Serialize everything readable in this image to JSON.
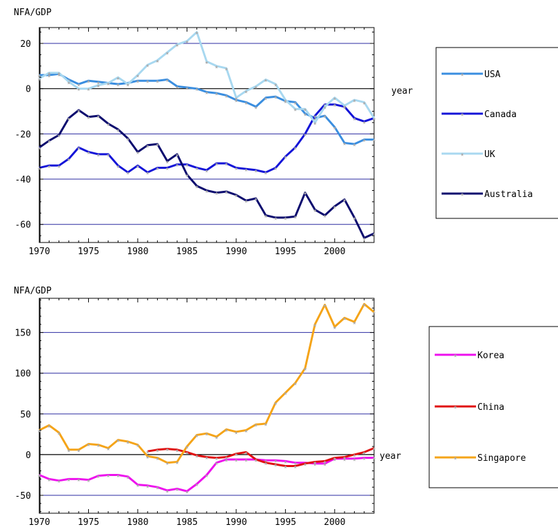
{
  "chart_data": [
    {
      "type": "line",
      "ylabel": "NFA/GDP",
      "xlabel": "year",
      "xlim": [
        1970,
        2004
      ],
      "ylim": [
        -68,
        27
      ],
      "xticks": [
        1970,
        1975,
        1980,
        1985,
        1990,
        1995,
        2000
      ],
      "yticks": [
        -60,
        -40,
        -20,
        0,
        20
      ],
      "ytick_labels": [
        "-60",
        "-40",
        "-20",
        "0",
        "20"
      ],
      "gridlines_y": [
        -60,
        -40,
        -20,
        20
      ],
      "grid": true,
      "legend_position": "right",
      "x": [
        1970,
        1971,
        1972,
        1973,
        1974,
        1975,
        1976,
        1977,
        1978,
        1979,
        1980,
        1981,
        1982,
        1983,
        1984,
        1985,
        1986,
        1987,
        1988,
        1989,
        1990,
        1991,
        1992,
        1993,
        1994,
        1995,
        1996,
        1997,
        1998,
        1999,
        2000,
        2001,
        2002,
        2003,
        2004
      ],
      "series": [
        {
          "name": "USA",
          "color": "#3a8ee0",
          "values": [
            6,
            6,
            6.5,
            4,
            2,
            3.5,
            3,
            2.5,
            2,
            2.5,
            3.5,
            3.5,
            3.5,
            4,
            1,
            0.5,
            0,
            -1.5,
            -2,
            -3,
            -5,
            -6,
            -8,
            -4,
            -3.5,
            -5.5,
            -6,
            -11,
            -13,
            -12,
            -17,
            -24,
            -24.5,
            -22.5,
            -22.5
          ]
        },
        {
          "name": "Canada",
          "color": "#1414d8",
          "values": [
            -35,
            -34,
            -34,
            -31,
            -26,
            -28,
            -29,
            -29,
            -34,
            -37,
            -34,
            -37,
            -35,
            -35,
            -33.5,
            -33.5,
            -35,
            -36,
            -33,
            -33,
            -35,
            -35.5,
            -36,
            -37,
            -35,
            -30,
            -26,
            -20,
            -12,
            -7,
            -7,
            -8,
            -13,
            -14.5,
            -13
          ]
        },
        {
          "name": "UK",
          "color": "#a8d8f0",
          "values": [
            4.5,
            7,
            7,
            3,
            0,
            0,
            1.5,
            2.5,
            5,
            2,
            6,
            10.5,
            12.5,
            16,
            19.5,
            21,
            25,
            12,
            10,
            9,
            -4,
            -1,
            1,
            4,
            2,
            -5,
            -9,
            -9,
            -15,
            -8,
            -4,
            -7.5,
            -5,
            -6,
            -13
          ]
        },
        {
          "name": "Australia",
          "color": "#0a0a6e",
          "values": [
            -26,
            -23,
            -20.5,
            -13,
            -9.5,
            -12.5,
            -12,
            -15.5,
            -18,
            -22,
            -28,
            -25,
            -24.5,
            -32,
            -29,
            -38,
            -43,
            -45,
            -46,
            -45.5,
            -47,
            -49.5,
            -48.5,
            -56,
            -57,
            -57,
            -56.5,
            -46,
            -53.5,
            -56,
            -52,
            -49,
            -57,
            -66,
            -64
          ]
        }
      ]
    },
    {
      "type": "line",
      "ylabel": "NFA/GDP",
      "xlabel": "year",
      "xlim": [
        1970,
        2004
      ],
      "ylim": [
        -72,
        192
      ],
      "xticks": [
        1970,
        1975,
        1980,
        1985,
        1990,
        1995,
        2000
      ],
      "yticks": [
        -50,
        0,
        50,
        100,
        150
      ],
      "ytick_labels": [
        "-50",
        "0",
        "50",
        "100",
        "150"
      ],
      "gridlines_y": [
        -50,
        50,
        100,
        150
      ],
      "grid": true,
      "legend_position": "right",
      "series": [
        {
          "name": "Korea",
          "color": "#ee10ee",
          "x": [
            1970,
            1971,
            1972,
            1973,
            1974,
            1975,
            1976,
            1977,
            1978,
            1979,
            1980,
            1981,
            1982,
            1983,
            1984,
            1985,
            1986,
            1987,
            1988,
            1989,
            1990,
            1991,
            1992,
            1993,
            1994,
            1995,
            1996,
            1997,
            1998,
            1999,
            2000,
            2001,
            2002,
            2003,
            2004
          ],
          "values": [
            -25,
            -30,
            -32,
            -30,
            -30,
            -31,
            -26,
            -25,
            -25,
            -27,
            -37,
            -38,
            -40,
            -44,
            -42,
            -45,
            -36,
            -25,
            -10,
            -6,
            -6,
            -6,
            -6,
            -7,
            -7,
            -8,
            -10,
            -10,
            -11,
            -11,
            -5,
            -5,
            -5,
            -4,
            -4
          ]
        },
        {
          "name": "China",
          "color": "#e01010",
          "x": [
            1981,
            1982,
            1983,
            1984,
            1985,
            1986,
            1987,
            1988,
            1989,
            1990,
            1991,
            1992,
            1993,
            1994,
            1995,
            1996,
            1997,
            1998,
            1999,
            2000,
            2001,
            2002,
            2003,
            2004
          ],
          "values": [
            4,
            6,
            7,
            6,
            3,
            -1,
            -3,
            -4,
            -3,
            1,
            3,
            -6,
            -10,
            -12,
            -14,
            -14,
            -11,
            -9,
            -8,
            -4,
            -3,
            0,
            3,
            8
          ]
        },
        {
          "name": "Singapore",
          "color": "#f5a418",
          "x": [
            1970,
            1971,
            1972,
            1973,
            1974,
            1975,
            1976,
            1977,
            1978,
            1979,
            1980,
            1981,
            1982,
            1983,
            1984,
            1985,
            1986,
            1987,
            1988,
            1989,
            1990,
            1991,
            1992,
            1993,
            1994,
            1995,
            1996,
            1997,
            1998,
            1999,
            2000,
            2001,
            2002,
            2003,
            2004
          ],
          "values": [
            30,
            36,
            27,
            6,
            6,
            13,
            12,
            8,
            18,
            16,
            12,
            -2,
            -4,
            -10,
            -9,
            10,
            24,
            26,
            22,
            31,
            28,
            30,
            37,
            38,
            64,
            76,
            88,
            106,
            160,
            184,
            157,
            168,
            163,
            185,
            175
          ]
        }
      ]
    }
  ]
}
